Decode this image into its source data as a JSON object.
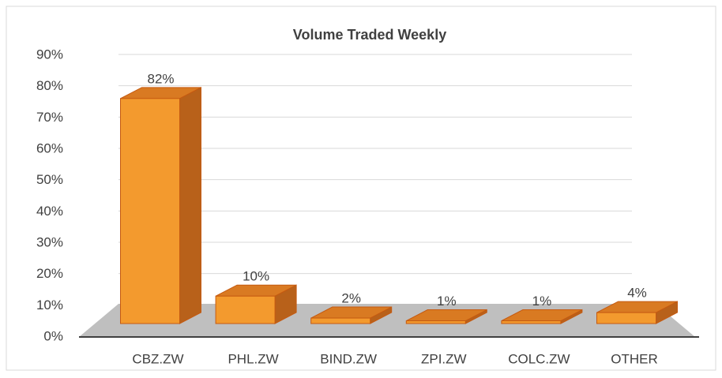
{
  "chart_data": {
    "type": "bar3d",
    "title": "Volume Traded Weekly",
    "categories": [
      "CBZ.ZW",
      "PHL.ZW",
      "BIND.ZW",
      "ZPI.ZW",
      "COLC.ZW",
      "OTHER"
    ],
    "values": [
      82,
      10,
      2,
      1,
      1,
      4
    ],
    "value_labels": [
      "82%",
      "10%",
      "2%",
      "1%",
      "1%",
      "4%"
    ],
    "color": "#f39a2e",
    "ylim": [
      0,
      90
    ],
    "yticks": [
      {
        "value": 0,
        "label": "0%"
      },
      {
        "value": 10,
        "label": "10%"
      },
      {
        "value": 20,
        "label": "20%"
      },
      {
        "value": 30,
        "label": "30%"
      },
      {
        "value": 40,
        "label": "40%"
      },
      {
        "value": 50,
        "label": "50%"
      },
      {
        "value": 60,
        "label": "60%"
      },
      {
        "value": 70,
        "label": "70%"
      },
      {
        "value": 80,
        "label": "80%"
      },
      {
        "value": 90,
        "label": "90%"
      }
    ],
    "grid": true
  }
}
